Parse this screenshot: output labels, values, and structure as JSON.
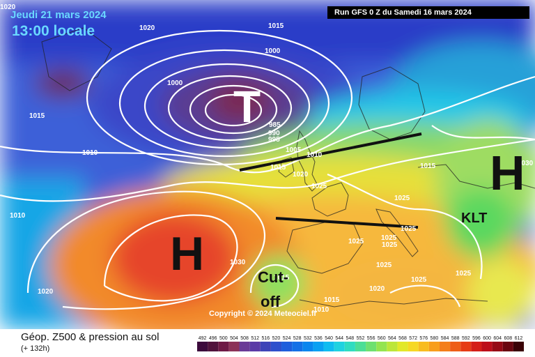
{
  "header": {
    "date": "Jeudi 21 mars 2024",
    "local_time": "13:00 locale",
    "run": "Run GFS 0 Z du Samedi 16 mars 2024"
  },
  "map": {
    "systems": [
      {
        "symbol": "T",
        "color": "#ffffff"
      },
      {
        "symbol": "H",
        "color": "#111111"
      },
      {
        "symbol": "H",
        "color": "#111111"
      },
      {
        "symbol": "KLT",
        "color": "#111111"
      },
      {
        "symbol": "Cut-",
        "color": "#111111"
      },
      {
        "symbol": "off",
        "color": "#111111"
      }
    ],
    "isobar_labels": [
      "1020",
      "1020",
      "1015",
      "1000",
      "1000",
      "1015",
      "1010",
      "1010",
      "985",
      "990",
      "995",
      "1005",
      "1010",
      "1015",
      "1020",
      "1025",
      "1025",
      "1030",
      "1025",
      "1025",
      "1025",
      "1025",
      "1025",
      "1025",
      "1015",
      "1015",
      "1010",
      "1020",
      "1015",
      "1020",
      "1030",
      "1025"
    ],
    "copyright": "Copyright © 2024 Meteociel.fr"
  },
  "footer": {
    "title": "Géop. Z500 & pression au sol",
    "subtitle": "(+ 132h)",
    "scale_labels": [
      "492",
      "496",
      "500",
      "504",
      "508",
      "512",
      "516",
      "520",
      "524",
      "528",
      "532",
      "536",
      "540",
      "544",
      "548",
      "552",
      "556",
      "560",
      "564",
      "568",
      "572",
      "576",
      "580",
      "584",
      "588",
      "592",
      "596",
      "600",
      "604",
      "608",
      "612"
    ],
    "scale_colors": [
      "#3c0a3c",
      "#50123c",
      "#6e1a46",
      "#8c3258",
      "#6a3a96",
      "#5a3aa6",
      "#3e44b8",
      "#2e50cc",
      "#1e5edc",
      "#1470e6",
      "#0a86ee",
      "#0aa0f2",
      "#10bcf0",
      "#20d2e0",
      "#30dcc0",
      "#4cde96",
      "#6ee070",
      "#94e450",
      "#bce63a",
      "#e2e82a",
      "#f6d824",
      "#f8bc20",
      "#f89e1c",
      "#f47e1a",
      "#ee5e18",
      "#e63c16",
      "#d41e18",
      "#bc0e1a",
      "#960a16",
      "#6a0610",
      "#3a0206"
    ]
  }
}
